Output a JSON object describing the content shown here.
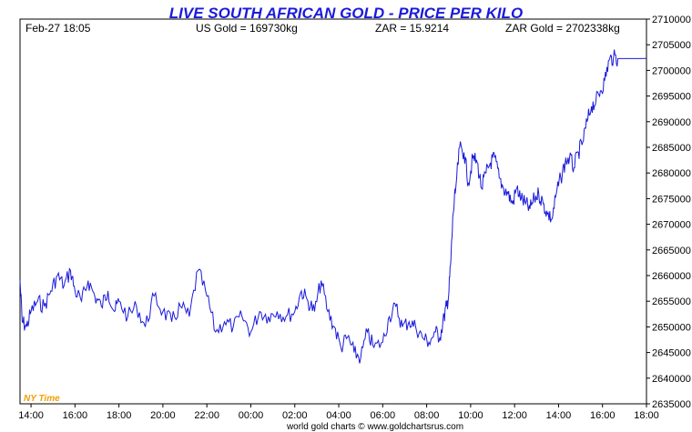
{
  "header": {
    "title": "LIVE SOUTH AFRICAN GOLD - PRICE PER KILO",
    "date_time": "Feb-27  18:05",
    "us_gold": "US Gold = 169730kg",
    "zar_rate": "ZAR = 15.9214",
    "zar_gold": "ZAR Gold = 2702338kg"
  },
  "timezone_label": "NY Time",
  "footer": "world gold charts © www.goldchartsrus.com",
  "colors": {
    "line": "#1a1adb",
    "title": "#1a1adb",
    "timezone": "#f0a000"
  },
  "chart_data": {
    "type": "line",
    "title": "LIVE SOUTH AFRICAN GOLD - PRICE PER KILO",
    "xlabel": "",
    "ylabel": "",
    "x_ticks": [
      "14:00",
      "16:00",
      "18:00",
      "20:00",
      "22:00",
      "00:00",
      "02:00",
      "04:00",
      "06:00",
      "08:00",
      "10:00",
      "12:00",
      "14:00",
      "16:00",
      "18:00"
    ],
    "y_ticks": [
      "2635000",
      "2640000",
      "2645000",
      "2650000",
      "2655000",
      "2660000",
      "2665000",
      "2670000",
      "2675000",
      "2680000",
      "2685000",
      "2690000",
      "2695000",
      "2700000",
      "2705000",
      "2710000"
    ],
    "ylim": [
      2635000,
      2710000
    ],
    "xlim_hours": [
      13.5,
      42.0
    ],
    "grid": false,
    "series": [
      {
        "x": [
          13.5,
          13.6,
          13.8,
          14.0,
          14.3,
          14.6,
          14.9,
          15.2,
          15.5,
          15.8,
          16.0,
          16.3,
          16.6,
          16.9,
          17.2,
          17.5,
          17.8,
          18.0,
          18.4,
          18.8,
          19.2,
          19.6,
          20.0,
          20.4,
          20.8,
          21.2,
          21.6,
          22.0,
          22.4,
          22.8,
          23.2,
          23.6,
          24.0,
          24.4,
          24.8,
          25.2,
          25.6,
          26.0,
          26.3,
          26.6,
          26.9,
          27.2,
          27.5,
          27.8,
          28.1,
          28.4,
          28.7,
          29.0,
          29.3,
          29.6,
          30.0,
          30.3,
          30.6,
          30.9,
          31.2,
          31.5,
          31.8,
          32.1,
          32.4,
          32.6,
          32.8,
          32.9,
          33.0,
          33.1,
          33.2,
          33.3,
          33.5,
          33.7,
          33.9,
          34.1,
          34.3,
          34.5,
          34.7,
          34.9,
          35.1,
          35.3,
          35.5,
          35.7,
          35.9,
          36.1,
          36.3,
          36.5,
          36.7,
          36.9,
          37.1,
          37.3,
          37.5,
          37.7,
          37.9,
          38.1,
          38.3,
          38.5,
          38.7,
          38.9,
          39.1,
          39.3,
          39.5,
          39.7,
          39.9,
          40.1,
          40.3,
          40.5,
          40.7,
          40.9,
          41.1,
          41.3,
          41.5,
          41.7,
          42.0
        ],
        "y": [
          2659000,
          2651000,
          2650000,
          2653000,
          2655000,
          2654000,
          2657000,
          2660000,
          2658000,
          2661000,
          2657000,
          2655000,
          2659000,
          2656000,
          2654000,
          2657000,
          2653000,
          2655000,
          2652000,
          2654000,
          2650000,
          2656000,
          2653000,
          2651000,
          2654000,
          2652000,
          2661000,
          2656000,
          2649000,
          2651000,
          2650000,
          2652000,
          2649000,
          2653000,
          2652000,
          2653000,
          2652000,
          2653000,
          2657000,
          2655000,
          2653000,
          2659000,
          2653000,
          2650000,
          2646000,
          2648000,
          2645000,
          2644000,
          2649000,
          2646000,
          2647000,
          2652000,
          2654000,
          2650000,
          2651000,
          2650000,
          2648000,
          2647000,
          2649000,
          2648000,
          2652000,
          2654000,
          2656000,
          2663000,
          2672000,
          2676000,
          2685000,
          2684000,
          2678000,
          2683000,
          2682000,
          2677000,
          2680000,
          2682000,
          2683000,
          2679000,
          2677000,
          2676000,
          2674000,
          2677000,
          2675000,
          2674000,
          2673000,
          2675000,
          2676000,
          2674000,
          2672000,
          2671000,
          2676000,
          2679000,
          2682000,
          2683000,
          2681000,
          2684000,
          2686000,
          2690000,
          2693000,
          2694000,
          2696000,
          2698000,
          2702000,
          2702500,
          2702300,
          2702300,
          2702300,
          2702300,
          2702300,
          2702300,
          2702338
        ]
      }
    ]
  }
}
